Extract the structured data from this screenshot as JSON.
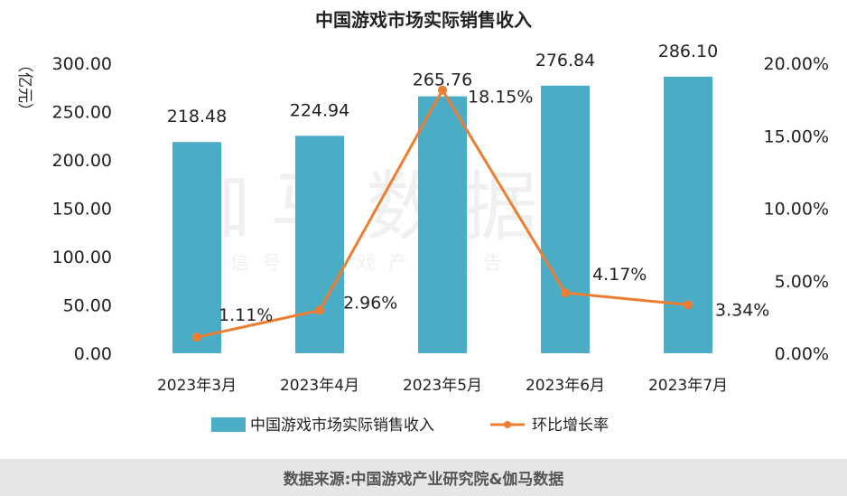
{
  "chart_data": {
    "type": "bar",
    "title": "中国游戏市场实际销售收入",
    "ylabel": "（亿元）",
    "categories": [
      "2023年3月",
      "2023年4月",
      "2023年5月",
      "2023年6月",
      "2023年7月"
    ],
    "series": [
      {
        "name": "中国游戏市场实际销售收入",
        "type": "bar",
        "axis": "left",
        "values": [
          218.48,
          224.94,
          265.76,
          276.84,
          286.1
        ],
        "labels": [
          "218.48",
          "224.94",
          "265.76",
          "276.84",
          "286.10"
        ],
        "color": "#4bacc6"
      },
      {
        "name": "环比增长率",
        "type": "line",
        "axis": "right",
        "values": [
          1.11,
          2.96,
          18.15,
          4.17,
          3.34
        ],
        "labels": [
          "1.11%",
          "2.96%",
          "18.15%",
          "4.17%",
          "3.34%"
        ],
        "color": "#ed7d31"
      }
    ],
    "y_left": {
      "ylim": [
        0,
        300
      ],
      "ticks": [
        0,
        50,
        100,
        150,
        200,
        250,
        300
      ],
      "tick_labels": [
        "0.00",
        "50.00",
        "100.00",
        "150.00",
        "200.00",
        "250.00",
        "300.00"
      ]
    },
    "y_right": {
      "ylim": [
        0,
        20
      ],
      "ticks": [
        0,
        5,
        10,
        15,
        20
      ],
      "tick_labels": [
        "0.00%",
        "5.00%",
        "10.00%",
        "15.00%",
        "20.00%"
      ]
    },
    "grid": false,
    "legend": "bottom"
  },
  "watermark": {
    "main": "伽马数据",
    "sub": "微信号：游戏产业报告"
  },
  "footer": {
    "source": "数据来源:中国游戏产业研究院&伽马数据"
  }
}
